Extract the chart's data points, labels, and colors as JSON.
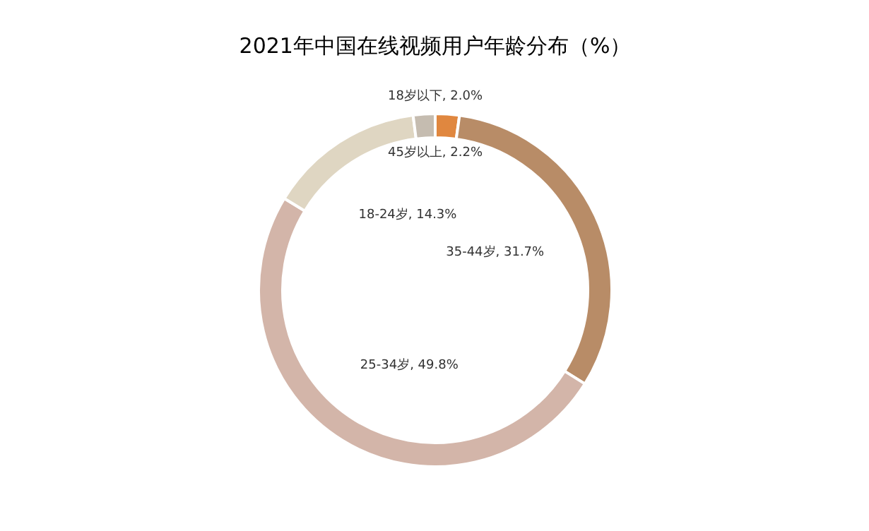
{
  "chart_data": {
    "type": "donut",
    "title": "2021年中国在线视频用户年龄分布（%）",
    "categories": [
      "45岁以上",
      "35-44岁",
      "25-34岁",
      "18-24岁",
      "18岁以下"
    ],
    "values": [
      2.2,
      31.7,
      49.8,
      14.3,
      2.0
    ],
    "colors": [
      "#e0873f",
      "#b88c67",
      "#d3b5a9",
      "#dfd6c2",
      "#c5bcb0"
    ],
    "value_labels": [
      "2.2%",
      "31.7%",
      "49.8%",
      "14.3%",
      "2.0%"
    ]
  }
}
